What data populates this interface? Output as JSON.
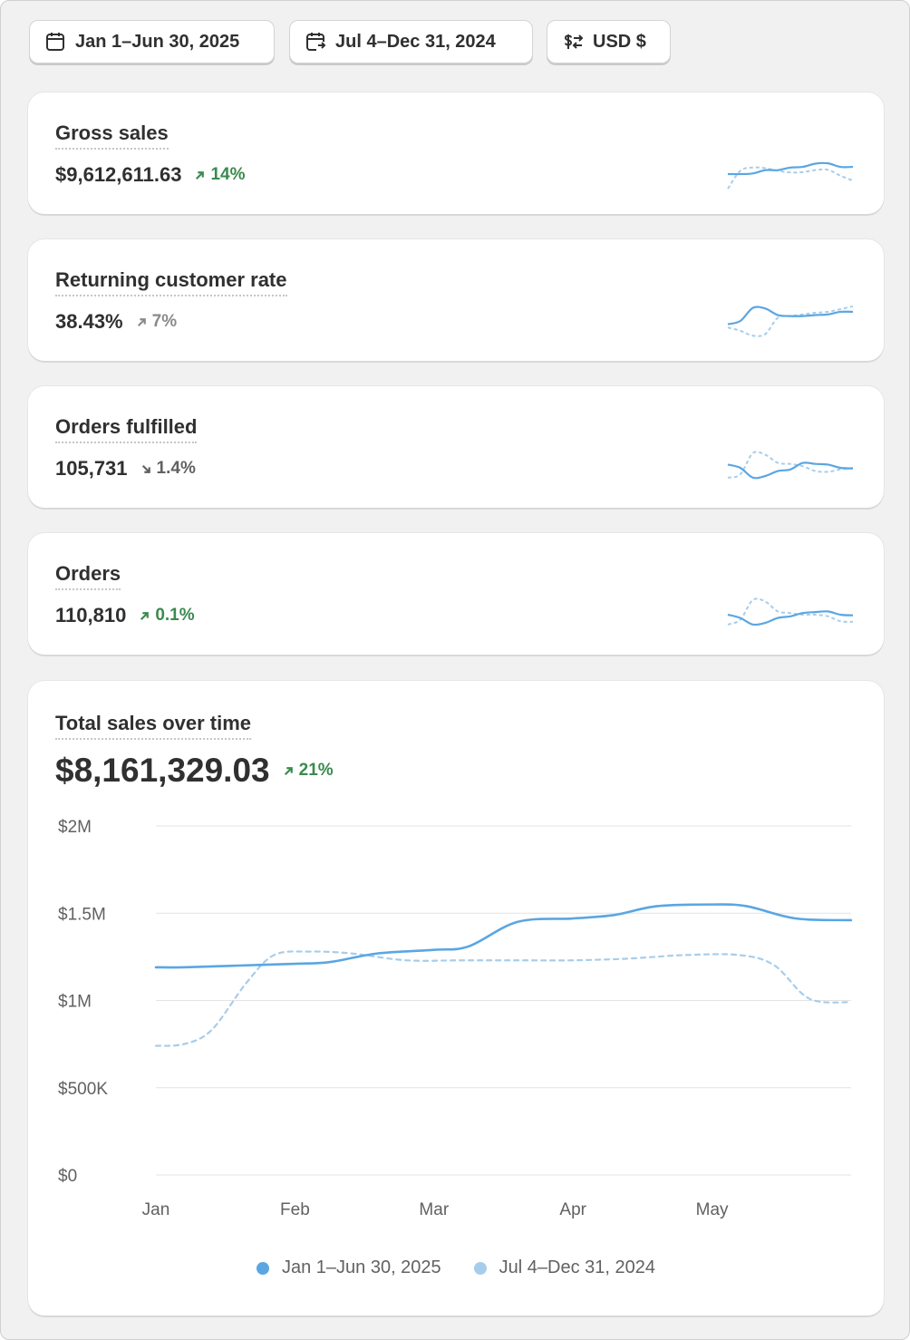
{
  "filters": {
    "date_range": "Jan 1–Jun 30, 2025",
    "compare_range": "Jul 4–Dec 31, 2024",
    "currency": "USD $"
  },
  "metrics": [
    {
      "title": "Gross sales",
      "value": "$9,612,611.63",
      "delta": "14%",
      "trend": "up",
      "spark_current": [
        0.5,
        0.5,
        0.52,
        0.62,
        0.62,
        0.7,
        0.72,
        0.82,
        0.83,
        0.72,
        0.72
      ],
      "spark_previous": [
        0.05,
        0.6,
        0.7,
        0.68,
        0.6,
        0.55,
        0.56,
        0.62,
        0.63,
        0.45,
        0.3
      ]
    },
    {
      "title": "Returning customer rate",
      "value": "38.43%",
      "delta": "7%",
      "trend": "neutral",
      "spark_current": [
        0.4,
        0.5,
        0.9,
        0.88,
        0.68,
        0.65,
        0.65,
        0.68,
        0.7,
        0.78,
        0.78
      ],
      "spark_previous": [
        0.3,
        0.2,
        0.05,
        0.1,
        0.6,
        0.65,
        0.7,
        0.75,
        0.78,
        0.86,
        0.95
      ]
    },
    {
      "title": "Orders fulfilled",
      "value": "105,731",
      "delta": "1.4%",
      "trend": "down",
      "spark_current": [
        0.6,
        0.5,
        0.2,
        0.25,
        0.4,
        0.45,
        0.65,
        0.62,
        0.6,
        0.5,
        0.48
      ],
      "spark_previous": [
        0.2,
        0.3,
        0.95,
        0.9,
        0.65,
        0.62,
        0.55,
        0.4,
        0.38,
        0.45,
        0.5
      ]
    },
    {
      "title": "Orders",
      "value": "110,810",
      "delta": "0.1%",
      "trend": "up",
      "spark_current": [
        0.5,
        0.4,
        0.2,
        0.25,
        0.4,
        0.45,
        0.55,
        0.58,
        0.6,
        0.5,
        0.48
      ],
      "spark_previous": [
        0.2,
        0.35,
        0.95,
        0.9,
        0.6,
        0.55,
        0.5,
        0.5,
        0.45,
        0.3,
        0.28
      ]
    }
  ],
  "total_sales": {
    "title": "Total sales over time",
    "value": "$8,161,329.03",
    "delta": "21%"
  },
  "chart_data": {
    "type": "line",
    "title": "Total sales over time",
    "xlabel": "",
    "ylabel": "",
    "x_tick_labels": [
      "Jan",
      "Feb",
      "Mar",
      "Apr",
      "May"
    ],
    "y_tick_labels": [
      "$0",
      "$500K",
      "$1M",
      "$1.5M",
      "$2M"
    ],
    "y_tick_values": [
      0,
      500000,
      1000000,
      1500000,
      2000000
    ],
    "ylim": [
      0,
      2000000
    ],
    "x_index_range": [
      0,
      5
    ],
    "grid": true,
    "legend": "bottom-center",
    "series": [
      {
        "name": "Jan 1–Jun 30, 2025",
        "color": "#5aa6e3",
        "style": "solid",
        "x": [
          0,
          0.2,
          0.6,
          1.0,
          1.25,
          1.6,
          2.0,
          2.25,
          2.6,
          3.0,
          3.3,
          3.6,
          4.0,
          4.25,
          4.6,
          5.0
        ],
        "values": [
          1190000,
          1190000,
          1200000,
          1210000,
          1220000,
          1270000,
          1290000,
          1310000,
          1450000,
          1470000,
          1490000,
          1540000,
          1550000,
          1540000,
          1470000,
          1460000
        ]
      },
      {
        "name": "Jul 4–Dec 31, 2024",
        "color": "#a8cdea",
        "style": "dashed",
        "x": [
          0,
          0.2,
          0.4,
          0.65,
          0.85,
          1.1,
          1.4,
          1.8,
          2.2,
          2.6,
          3.0,
          3.4,
          3.8,
          4.2,
          4.45,
          4.7,
          5.0
        ],
        "values": [
          740000,
          750000,
          830000,
          1100000,
          1260000,
          1280000,
          1270000,
          1230000,
          1230000,
          1230000,
          1230000,
          1240000,
          1260000,
          1260000,
          1200000,
          1010000,
          990000
        ]
      }
    ]
  }
}
